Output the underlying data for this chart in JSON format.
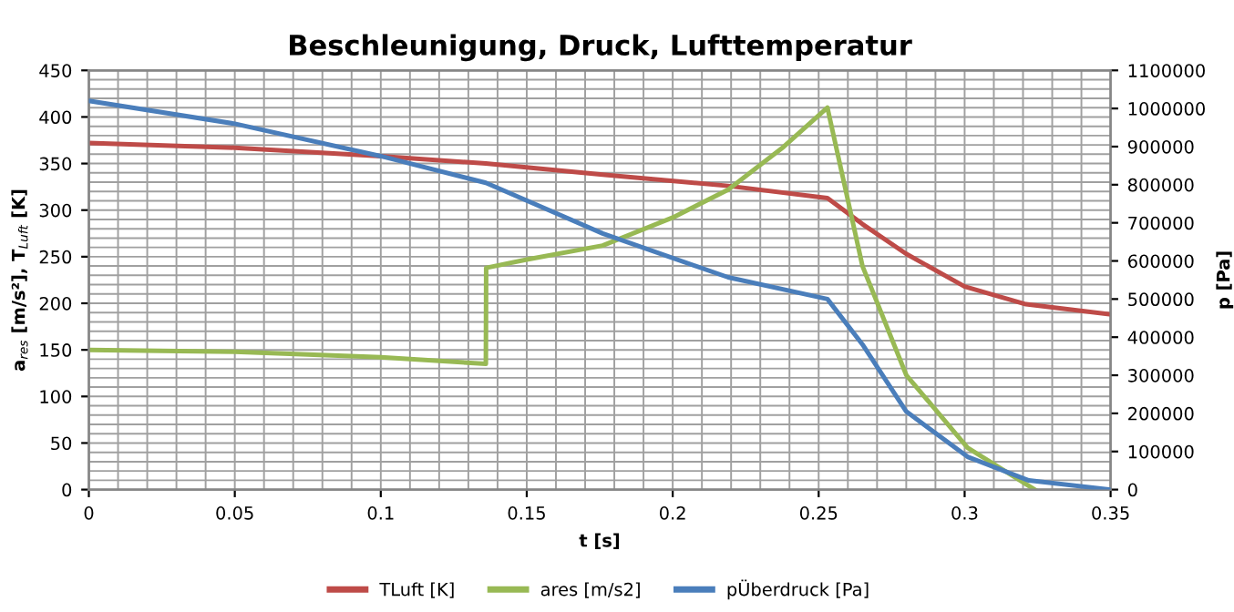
{
  "chart_data": {
    "type": "line",
    "title": "Beschleunigung, Druck, Lufttemperatur",
    "xlabel": "t [s]",
    "ylabel": "a$_{res}$ [m/s²], T$_{Luft}$ [K]",
    "y2label": "p [Pa]",
    "xlim": [
      0,
      0.35
    ],
    "xticks": [
      0,
      0.05,
      0.1,
      0.15,
      0.2,
      0.25,
      0.3,
      0.35
    ],
    "ylim": [
      0,
      450
    ],
    "yticks": [
      0,
      50,
      100,
      150,
      200,
      250,
      300,
      350,
      400,
      450
    ],
    "y2lim": [
      0,
      1100000
    ],
    "y2ticks": [
      0,
      100000,
      200000,
      300000,
      400000,
      500000,
      600000,
      700000,
      800000,
      900000,
      1000000,
      1100000
    ],
    "grid": true,
    "legend": "bottom",
    "marker": "none",
    "line_style": "solid",
    "series": [
      {
        "name": "TLuft [K]",
        "color": "#be4b48",
        "x": [
          0,
          0.05,
          0.1,
          0.136,
          0.176,
          0.219,
          0.253,
          0.265,
          0.28,
          0.3,
          0.321,
          0.35
        ],
        "values": [
          372,
          367,
          358,
          350,
          338,
          326,
          313,
          285,
          253,
          218,
          199,
          188
        ]
      },
      {
        "name": "ares [m/s2]",
        "color": "#98b954",
        "x": [
          0,
          0.05,
          0.1,
          0.136,
          0.1361,
          0.15,
          0.176,
          0.2,
          0.219,
          0.238,
          0.253,
          0.265,
          0.28,
          0.301,
          0.324
        ],
        "values": [
          150,
          148,
          142,
          135,
          238,
          247,
          262,
          292,
          322,
          368,
          410,
          240,
          123,
          45,
          0
        ]
      },
      {
        "name": "pÜberdruck [Pa]",
        "color": "#4a7ebb",
        "axis": "y2",
        "x": [
          0,
          0.05,
          0.1,
          0.136,
          0.176,
          0.219,
          0.253,
          0.265,
          0.28,
          0.301,
          0.322,
          0.35
        ],
        "values": [
          1020000,
          960000,
          875000,
          805000,
          672000,
          557000,
          500000,
          381000,
          205000,
          86000,
          24000,
          0
        ]
      }
    ]
  }
}
